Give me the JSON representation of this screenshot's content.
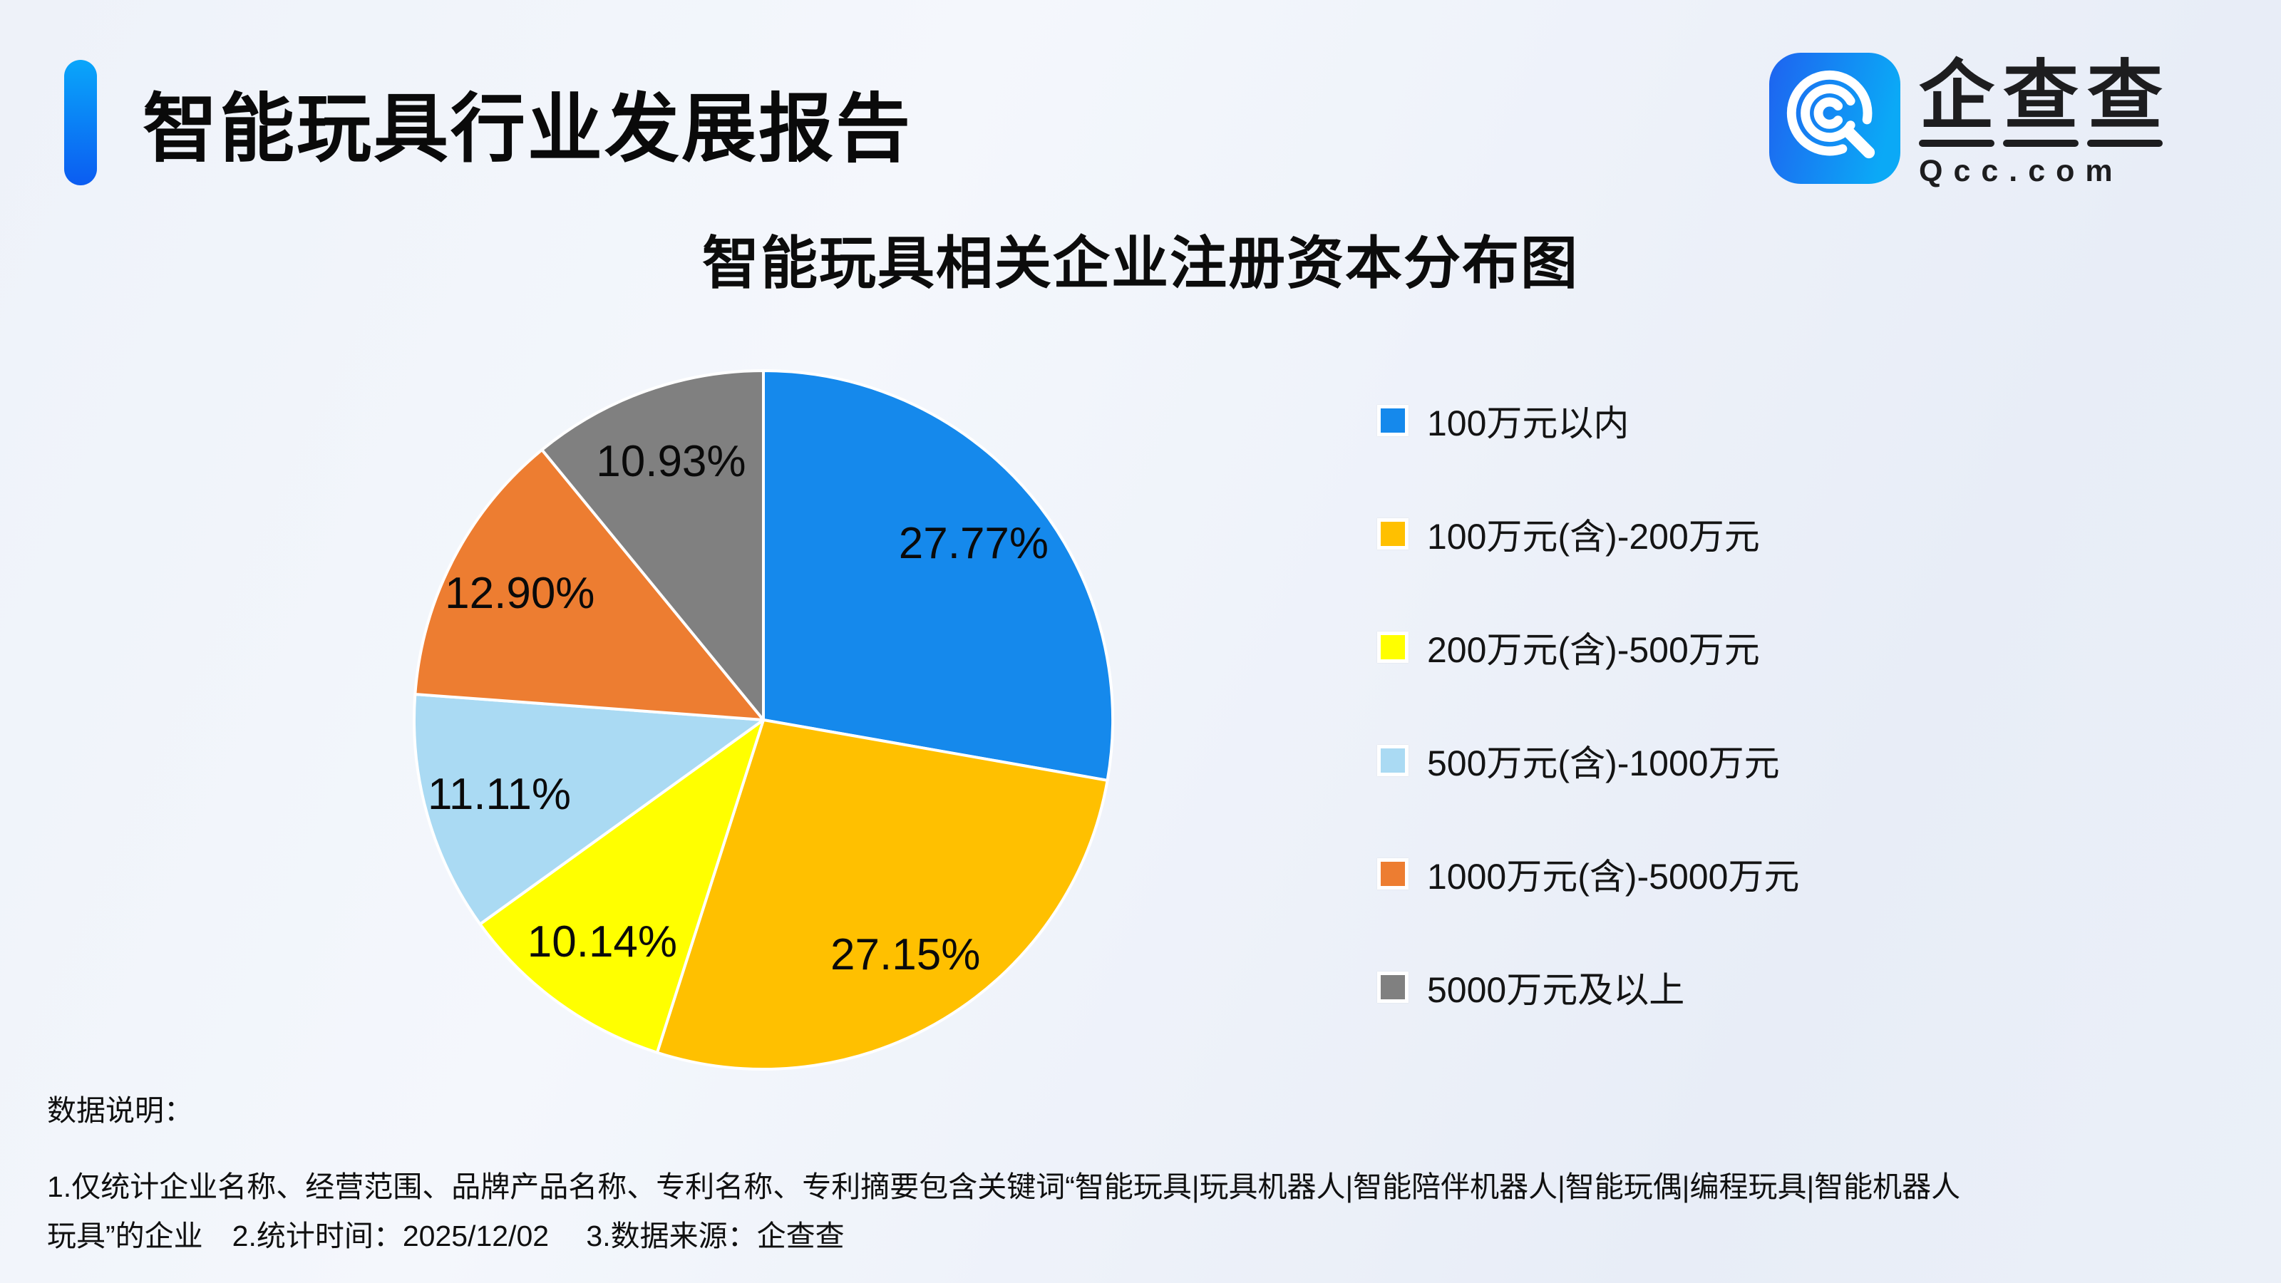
{
  "header": {
    "title": "智能玩具行业发展报告"
  },
  "logo": {
    "name": "企查查",
    "domain": "Qcc.com",
    "icon": "qcc-magnifier-q-icon",
    "icon_gradient": [
      "#1e63f0",
      "#0ba9f6"
    ]
  },
  "chart_data": {
    "type": "pie",
    "title": "智能玩具相关企业注册资本分布图",
    "start_angle_deg": 0,
    "direction": "clockwise",
    "legend_position": "right",
    "label_format": "percent-inside",
    "slices": [
      {
        "label": "100万元以内",
        "value": 27.77,
        "display": "27.77%",
        "color": "#1589ec"
      },
      {
        "label": "100万元(含)-200万元",
        "value": 27.15,
        "display": "27.15%",
        "color": "#ffc000"
      },
      {
        "label": "200万元(含)-500万元",
        "value": 10.14,
        "display": "10.14%",
        "color": "#ffff00"
      },
      {
        "label": "500万元(含)-1000万元",
        "value": 11.11,
        "display": "11.11%",
        "color": "#aadaf3"
      },
      {
        "label": "1000万元(含)-5000万元",
        "value": 12.9,
        "display": "12.90%",
        "color": "#ed7d31"
      },
      {
        "label": "5000万元及以上",
        "value": 10.93,
        "display": "10.93%",
        "color": "#808080"
      }
    ]
  },
  "footer": {
    "heading": "数据说明：",
    "note_line1": "1.仅统计企业名称、经营范围、品牌产品名称、专利名称、专利摘要包含关键词“智能玩具|玩具机器人|智能陪伴机器人|智能玩偶|编程玩具|智能机器人",
    "note_line2": "玩具”的企业　2.统计时间：2025/12/02　 3.数据来源：企查查"
  }
}
